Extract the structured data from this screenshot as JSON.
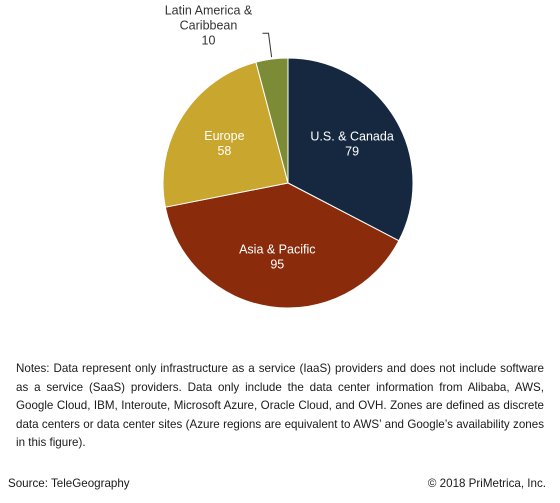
{
  "chart_data": {
    "type": "pie",
    "title": "",
    "unit": "",
    "slices": [
      {
        "label_lines": [
          "U.S. & Canada"
        ],
        "value": 79,
        "color": "#16283f",
        "label_color": "#ffffff"
      },
      {
        "label_lines": [
          "Asia & Pacific"
        ],
        "value": 95,
        "color": "#8a2c0c",
        "label_color": "#ffffff"
      },
      {
        "label_lines": [
          "Europe"
        ],
        "value": 58,
        "color": "#c9a62d",
        "label_color": "#ffffff"
      },
      {
        "label_lines": [
          "Latin America &",
          "Caribbean"
        ],
        "value": 10,
        "color": "#7c8c36",
        "label_color": "#333333"
      }
    ]
  },
  "notes": "Notes: Data represent only infrastructure as a service (IaaS) providers and does not include software as a service (SaaS) providers. Data only include the data center information from Alibaba, AWS, Google Cloud, IBM, Interoute, Microsoft Azure, Oracle Cloud, and OVH. Zones are defined as discrete data centers or data center sites (Azure regions are equivalent to AWS’ and Google’s availability zones in this figure).",
  "source": "Source: TeleGeography",
  "copyright": "© 2018 PriMetrica, Inc."
}
